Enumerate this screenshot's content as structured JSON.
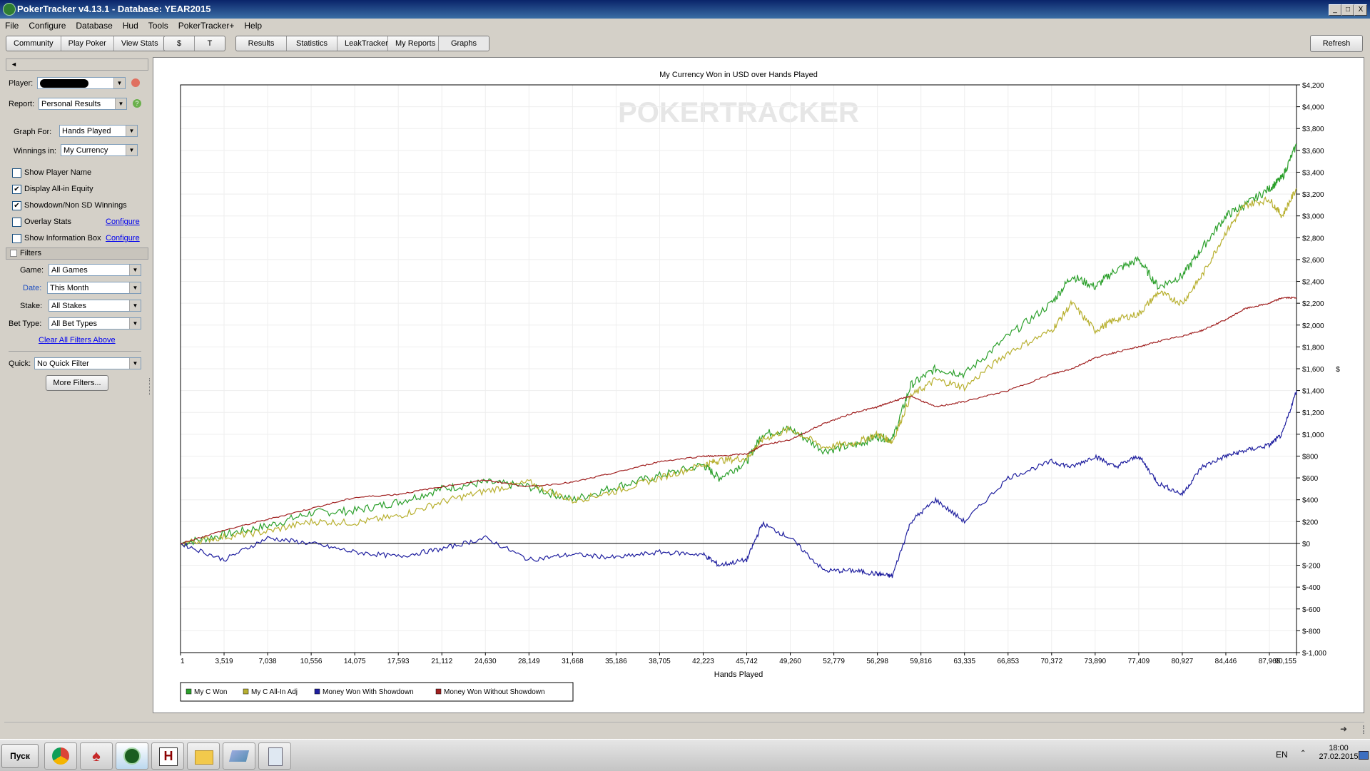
{
  "window": {
    "title": "PokerTracker v4.13.1 - Database: YEAR2015",
    "min": "_",
    "max": "□",
    "close": "X"
  },
  "menu": [
    "File",
    "Configure",
    "Database",
    "Hud",
    "Tools",
    "PokerTracker+",
    "Help"
  ],
  "toolbar": {
    "group1": [
      "Community",
      "Play Poker",
      "View Stats"
    ],
    "group2": [
      "$",
      "T"
    ],
    "group3": [
      "Results",
      "Statistics",
      "LeakTracker",
      "My Reports",
      "Graphs"
    ],
    "refresh": "Refresh"
  },
  "left": {
    "collapse": "◄",
    "player_label": "Player:",
    "report_label": "Report:",
    "report_value": "Personal Results",
    "graph_for_label": "Graph For:",
    "graph_for_value": "Hands Played",
    "winnings_label": "Winnings in:",
    "winnings_value": "My Currency",
    "checks": [
      {
        "label": "Show Player Name",
        "checked": false,
        "link": ""
      },
      {
        "label": "Display All-in Equity",
        "checked": true,
        "link": ""
      },
      {
        "label": "Showdown/Non SD Winnings",
        "checked": true,
        "link": ""
      },
      {
        "label": "Overlay Stats",
        "checked": false,
        "link": "Configure"
      },
      {
        "label": "Show Information Box",
        "checked": false,
        "link": "Configure"
      }
    ],
    "filters_header": "Filters",
    "filters": [
      {
        "label": "Game:",
        "value": "All Games"
      },
      {
        "label": "Date:",
        "value": "This Month"
      },
      {
        "label": "Stake:",
        "value": "All Stakes"
      },
      {
        "label": "Bet Type:",
        "value": "All Bet Types"
      }
    ],
    "clear_filters": "Clear All Filters Above",
    "quick_label": "Quick:",
    "quick_value": "No Quick Filter",
    "more_filters": "More Filters..."
  },
  "chart_data": {
    "type": "line",
    "title": "My Currency Won in USD over Hands Played",
    "watermark": "POKERTRACKER",
    "xlabel": "Hands Played",
    "ylabel": "$",
    "xlim": [
      1,
      90155
    ],
    "ylim": [
      -1000,
      4200
    ],
    "x_ticks": [
      "1",
      "3,519",
      "7,038",
      "10,556",
      "14,075",
      "17,593",
      "21,112",
      "24,630",
      "28,149",
      "31,668",
      "35,186",
      "38,705",
      "42,223",
      "45,742",
      "49,260",
      "52,779",
      "56,298",
      "59,816",
      "63,335",
      "66,853",
      "70,372",
      "73,890",
      "77,409",
      "80,927",
      "84,446",
      "87,965",
      "90,155"
    ],
    "y_ticks": [
      "$4,200",
      "$4,000",
      "$3,800",
      "$3,600",
      "$3,400",
      "$3,200",
      "$3,000",
      "$2,800",
      "$2,600",
      "$2,400",
      "$2,200",
      "$2,000",
      "$1,800",
      "$1,600",
      "$1,400",
      "$1,200",
      "$1,000",
      "$800",
      "$600",
      "$400",
      "$200",
      "$0",
      "$-200",
      "$-400",
      "$-600",
      "$-800",
      "$-1,000"
    ],
    "grid": true,
    "legend_position": "bottom-left",
    "x": [
      1,
      3519,
      7038,
      10556,
      14075,
      17593,
      21112,
      24630,
      28149,
      31668,
      35186,
      38705,
      42223,
      43500,
      45742,
      47000,
      49260,
      52000,
      54500,
      56298,
      57500,
      59000,
      61000,
      63335,
      66853,
      70372,
      72000,
      73890,
      75500,
      77409,
      79000,
      80927,
      82500,
      84446,
      86000,
      87965,
      89000,
      90155
    ],
    "series": [
      {
        "name": "My C Won",
        "color": "#2ca02c",
        "values": [
          0,
          80,
          160,
          280,
          300,
          380,
          500,
          560,
          520,
          400,
          520,
          620,
          720,
          600,
          750,
          1000,
          1050,
          850,
          900,
          980,
          950,
          1450,
          1600,
          1550,
          1900,
          2200,
          2450,
          2350,
          2500,
          2600,
          2350,
          2450,
          2700,
          3000,
          3100,
          3250,
          3350,
          3650
        ]
      },
      {
        "name": "My C All-In Adj",
        "color": "#b8b030",
        "values": [
          0,
          60,
          110,
          200,
          190,
          250,
          380,
          480,
          560,
          390,
          480,
          600,
          720,
          760,
          780,
          950,
          1050,
          880,
          920,
          1000,
          930,
          1350,
          1500,
          1430,
          1750,
          1950,
          2200,
          1950,
          2050,
          2100,
          2300,
          2200,
          2450,
          2850,
          3100,
          3150,
          3000,
          3250
        ]
      },
      {
        "name": "Money Won With Showdown",
        "color": "#1f1f9f",
        "values": [
          0,
          -150,
          50,
          0,
          -80,
          -120,
          -50,
          50,
          -150,
          -100,
          -130,
          -80,
          -100,
          -200,
          -150,
          180,
          50,
          -250,
          -250,
          -280,
          -300,
          200,
          400,
          200,
          600,
          750,
          700,
          800,
          700,
          800,
          550,
          450,
          700,
          800,
          850,
          900,
          1000,
          1400
        ]
      },
      {
        "name": "Money Won Without Showdown",
        "color": "#a02020",
        "values": [
          0,
          120,
          220,
          320,
          420,
          450,
          520,
          580,
          520,
          560,
          650,
          750,
          800,
          800,
          820,
          900,
          950,
          1100,
          1200,
          1250,
          1300,
          1350,
          1250,
          1300,
          1400,
          1550,
          1600,
          1700,
          1750,
          1800,
          1850,
          1900,
          1950,
          2050,
          2150,
          2200,
          2250,
          2250
        ]
      }
    ]
  },
  "taskbar": {
    "start": "Пуск",
    "apps": [
      "chrome-icon",
      "pokerstars-icon",
      "pokertracker-icon",
      "holdemmanager-icon",
      "folder-icon",
      "eraser-icon",
      "calculator-icon"
    ],
    "lang": "EN",
    "time": "18:00",
    "date": "27.02.2015"
  }
}
